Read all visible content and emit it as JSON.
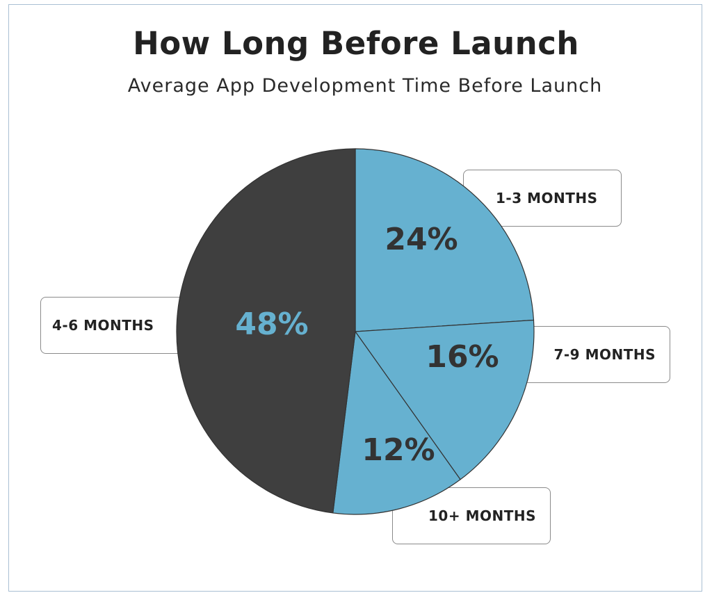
{
  "chart_data": {
    "type": "pie",
    "title": "How Long Before Launch",
    "subtitle": "Average App Development Time Before Launch",
    "slices": [
      {
        "label": "1-3 MONTHS",
        "value": 24,
        "value_label": "24%",
        "color": "#66b1d0",
        "text_color": "#333333"
      },
      {
        "label": "7-9 MONTHS",
        "value": 16,
        "value_label": "16%",
        "color": "#66b1d0",
        "text_color": "#333333"
      },
      {
        "label": "10+ MONTHS",
        "value": 12,
        "value_label": "12%",
        "color": "#66b1d0",
        "text_color": "#333333"
      },
      {
        "label": "4-6 MONTHS",
        "value": 48,
        "value_label": "48%",
        "color": "#3f3f3f",
        "text_color": "#66b1d0"
      }
    ]
  }
}
